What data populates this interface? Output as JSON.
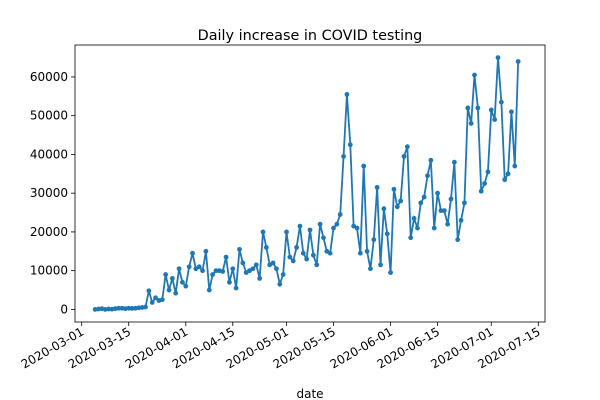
{
  "chart_data": {
    "type": "line",
    "title": "Daily increase in COVID testing",
    "x_label": "date",
    "x": [
      "2020-03-05",
      "2020-03-06",
      "2020-03-07",
      "2020-03-08",
      "2020-03-09",
      "2020-03-10",
      "2020-03-11",
      "2020-03-12",
      "2020-03-13",
      "2020-03-14",
      "2020-03-15",
      "2020-03-16",
      "2020-03-17",
      "2020-03-18",
      "2020-03-19",
      "2020-03-20",
      "2020-03-21",
      "2020-03-22",
      "2020-03-23",
      "2020-03-24",
      "2020-03-25",
      "2020-03-26",
      "2020-03-27",
      "2020-03-28",
      "2020-03-29",
      "2020-03-30",
      "2020-03-31",
      "2020-04-01",
      "2020-04-02",
      "2020-04-03",
      "2020-04-04",
      "2020-04-05",
      "2020-04-06",
      "2020-04-07",
      "2020-04-08",
      "2020-04-09",
      "2020-04-10",
      "2020-04-11",
      "2020-04-12",
      "2020-04-13",
      "2020-04-14",
      "2020-04-15",
      "2020-04-16",
      "2020-04-17",
      "2020-04-18",
      "2020-04-19",
      "2020-04-20",
      "2020-04-21",
      "2020-04-22",
      "2020-04-23",
      "2020-04-24",
      "2020-04-25",
      "2020-04-26",
      "2020-04-27",
      "2020-04-28",
      "2020-04-29",
      "2020-04-30",
      "2020-05-01",
      "2020-05-02",
      "2020-05-03",
      "2020-05-04",
      "2020-05-05",
      "2020-05-06",
      "2020-05-07",
      "2020-05-08",
      "2020-05-09",
      "2020-05-10",
      "2020-05-11",
      "2020-05-12",
      "2020-05-13",
      "2020-05-14",
      "2020-05-15",
      "2020-05-16",
      "2020-05-17",
      "2020-05-18",
      "2020-05-19",
      "2020-05-20",
      "2020-05-21",
      "2020-05-22",
      "2020-05-23",
      "2020-05-24",
      "2020-05-25",
      "2020-05-26",
      "2020-05-27",
      "2020-05-28",
      "2020-05-29",
      "2020-05-30",
      "2020-05-31",
      "2020-06-01",
      "2020-06-02",
      "2020-06-03",
      "2020-06-04",
      "2020-06-05",
      "2020-06-06",
      "2020-06-07",
      "2020-06-08",
      "2020-06-09",
      "2020-06-10",
      "2020-06-11",
      "2020-06-12",
      "2020-06-13",
      "2020-06-14",
      "2020-06-15",
      "2020-06-16",
      "2020-06-17",
      "2020-06-18",
      "2020-06-19",
      "2020-06-20",
      "2020-06-21",
      "2020-06-22",
      "2020-06-23",
      "2020-06-24",
      "2020-06-25",
      "2020-06-26",
      "2020-06-27",
      "2020-06-28",
      "2020-06-29",
      "2020-06-30",
      "2020-07-01",
      "2020-07-02",
      "2020-07-03",
      "2020-07-04",
      "2020-07-05",
      "2020-07-06",
      "2020-07-07",
      "2020-07-08",
      "2020-07-09"
    ],
    "values": [
      0,
      100,
      200,
      0,
      100,
      50,
      200,
      300,
      300,
      200,
      300,
      250,
      300,
      400,
      500,
      600,
      4800,
      1800,
      3000,
      2300,
      2500,
      9000,
      5000,
      8000,
      4200,
      10500,
      7000,
      6000,
      11000,
      14500,
      10500,
      11000,
      10000,
      15000,
      5000,
      9000,
      10000,
      10000,
      9800,
      13500,
      7000,
      10500,
      5500,
      15500,
      12000,
      9500,
      10000,
      10500,
      11500,
      8000,
      20000,
      16000,
      11500,
      12000,
      10500,
      6500,
      9000,
      20000,
      13500,
      12500,
      16000,
      21500,
      14500,
      13000,
      20500,
      14000,
      11500,
      22000,
      18500,
      15000,
      14500,
      21000,
      22000,
      24500,
      39500,
      55500,
      42500,
      21500,
      21000,
      14500,
      37000,
      15000,
      10500,
      18000,
      31500,
      11500,
      26000,
      19500,
      9500,
      31000,
      26500,
      28000,
      39500,
      42000,
      18500,
      23500,
      21000,
      27500,
      29000,
      34500,
      38500,
      21000,
      30000,
      25500,
      25500,
      22000,
      28500,
      38000,
      18000,
      23000,
      27500,
      52000,
      48000,
      60500,
      52000,
      30500,
      32500,
      35500,
      51500,
      49000,
      65000,
      53500,
      33500,
      35000,
      51000,
      37000,
      64000
    ],
    "color": "#1f77b4",
    "xlim": [
      "2020-02-28",
      "2020-07-17"
    ],
    "xticks": [
      "2020-03-01",
      "2020-03-15",
      "2020-04-01",
      "2020-04-15",
      "2020-05-01",
      "2020-05-15",
      "2020-06-01",
      "2020-06-15",
      "2020-07-01",
      "2020-07-15"
    ],
    "ylim": [
      -3250,
      68250
    ],
    "yticks": [
      0,
      10000,
      20000,
      30000,
      40000,
      50000,
      60000
    ]
  }
}
